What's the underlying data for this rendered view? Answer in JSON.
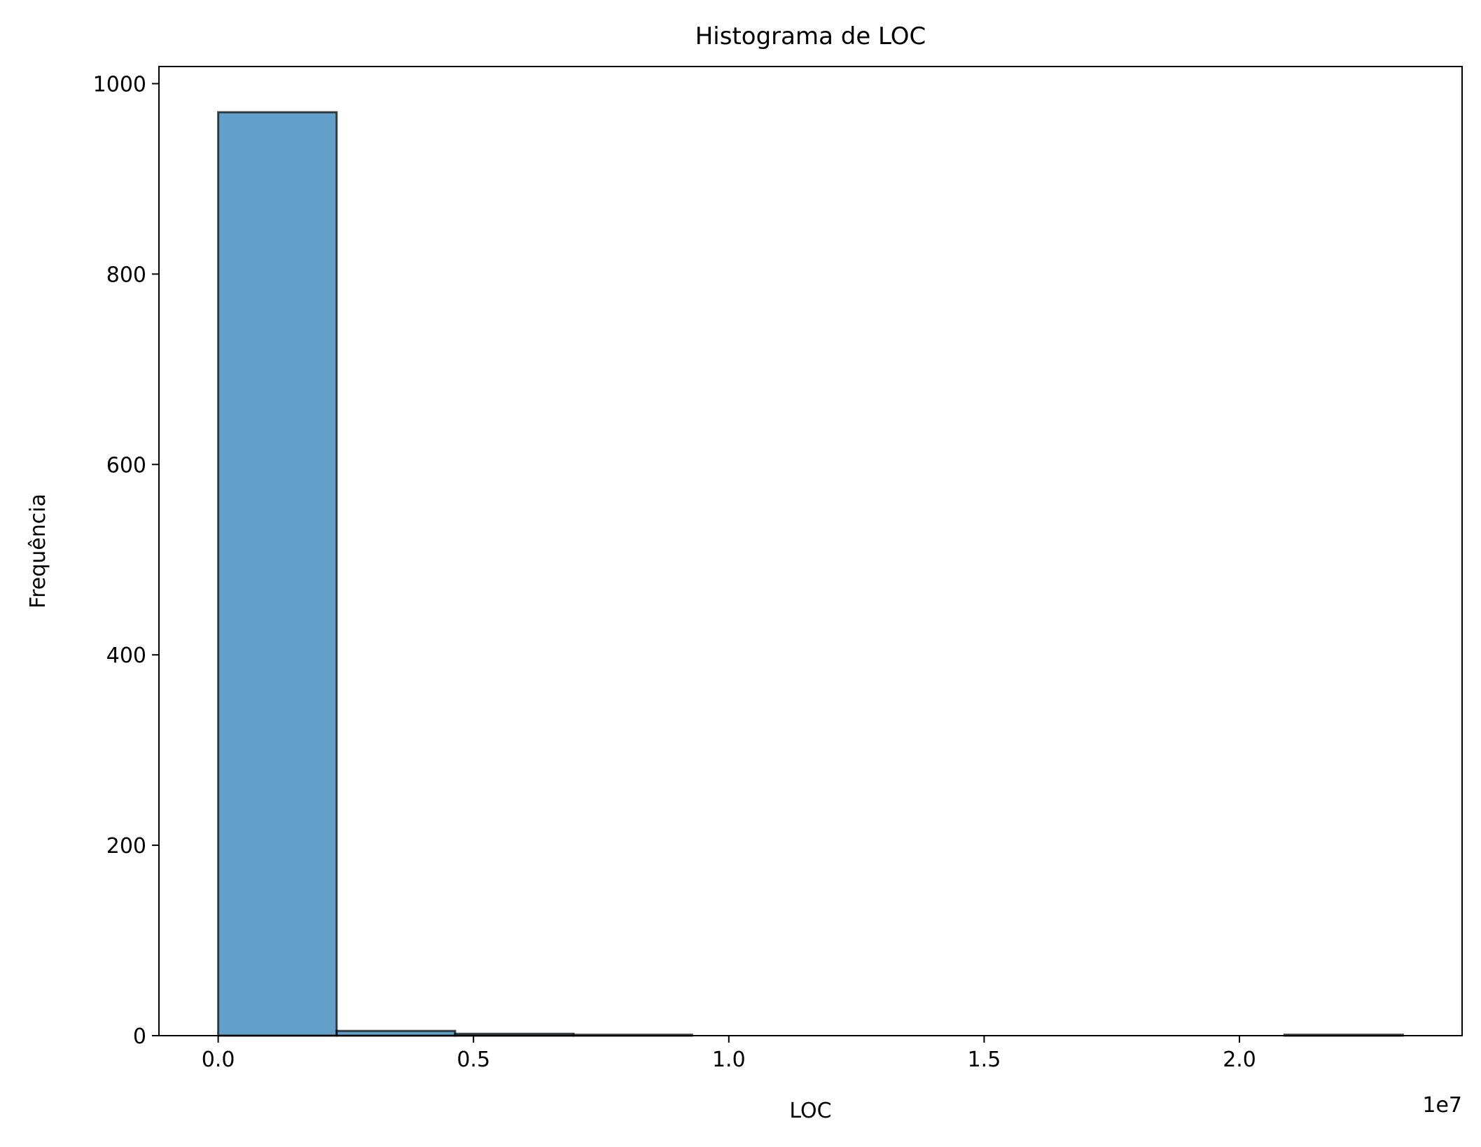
{
  "chart_data": {
    "type": "bar",
    "title": "Histograma de LOC",
    "xlabel": "LOC",
    "ylabel": "Frequência",
    "x_offset_label": "1e7",
    "x_scale_exponent": 7,
    "xlim": [
      -1160000,
      24360000
    ],
    "ylim": [
      0,
      1018
    ],
    "x_ticks": [
      0.0,
      0.5,
      1.0,
      1.5,
      2.0
    ],
    "x_tick_labels": [
      "0.0",
      "0.5",
      "1.0",
      "1.5",
      "2.0"
    ],
    "y_ticks": [
      0,
      200,
      400,
      600,
      800,
      1000
    ],
    "y_tick_labels": [
      "0",
      "200",
      "400",
      "600",
      "800",
      "1000"
    ],
    "grid": false,
    "legend": "none",
    "bins": [
      {
        "start": 0,
        "end": 2320000,
        "count": 970
      },
      {
        "start": 2320000,
        "end": 4640000,
        "count": 5
      },
      {
        "start": 4640000,
        "end": 6960000,
        "count": 2
      },
      {
        "start": 6960000,
        "end": 9280000,
        "count": 1
      },
      {
        "start": 9280000,
        "end": 11600000,
        "count": 0
      },
      {
        "start": 11600000,
        "end": 13920000,
        "count": 0
      },
      {
        "start": 13920000,
        "end": 16240000,
        "count": 0
      },
      {
        "start": 16240000,
        "end": 18560000,
        "count": 0
      },
      {
        "start": 18560000,
        "end": 20880000,
        "count": 0
      },
      {
        "start": 20880000,
        "end": 23200000,
        "count": 1
      }
    ],
    "colors": {
      "bar_fill": "#1f77b4",
      "bar_fill_opacity": 0.7,
      "bar_edge": "#000000",
      "axes": "#000000"
    }
  }
}
